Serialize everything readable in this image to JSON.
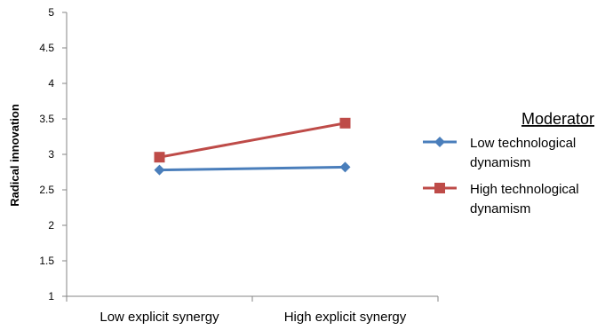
{
  "chart_data": {
    "type": "line",
    "title": "",
    "xlabel": "",
    "ylabel": "Radical innovation",
    "categories": [
      "Low explicit synergy",
      "High explicit synergy"
    ],
    "ylim": [
      1,
      5
    ],
    "yticks": [
      "1",
      "1.5",
      "2",
      "2.5",
      "3",
      "3.5",
      "4",
      "4.5",
      "5"
    ],
    "grid": false,
    "legend": {
      "title": "Moderator",
      "placement": "right"
    },
    "series": [
      {
        "name_lines": [
          "Low technological",
          "dynamism"
        ],
        "values": [
          2.78,
          2.82
        ],
        "color": "#4a7ebb",
        "marker": "diamond"
      },
      {
        "name_lines": [
          "High technological",
          "dynamism"
        ],
        "values": [
          2.96,
          3.44
        ],
        "color": "#be4b48",
        "marker": "square"
      }
    ]
  }
}
